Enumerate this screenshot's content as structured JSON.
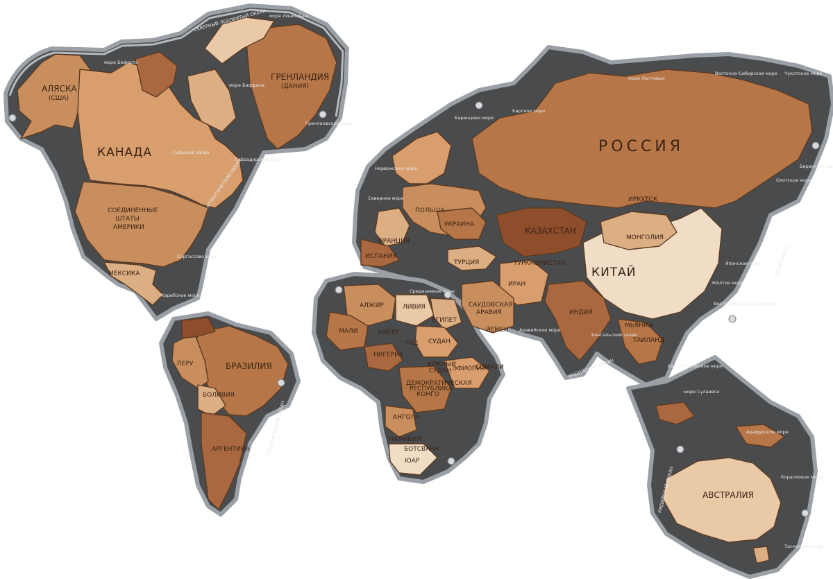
{
  "map": {
    "countries": {
      "alaska": "АЛЯСКА",
      "alaska_sub": "(США)",
      "canada": "КАНАДА",
      "usa_1": "СОЕДИНЕННЫЕ",
      "usa_2": "ШТАТЫ",
      "usa_3": "АМЕРИКИ",
      "mexico": "МЕКСИКА",
      "greenland": "ГРЕНЛАНДИЯ",
      "greenland_sub": "(ДАНИЯ)",
      "brazil": "БРАЗИЛИЯ",
      "peru": "ПЕРУ",
      "bolivia": "БОЛИВИЯ",
      "argentina": "АРГЕНТИНА",
      "russia": "РОССИЯ",
      "kazakhstan": "КАЗАХСТАН",
      "mongolia": "МОНГОЛИЯ",
      "china": "КИТАЙ",
      "india": "ИНДИЯ",
      "iran": "ИРАН",
      "turkey": "ТУРЦИЯ",
      "turkmenistan": "ТУРКМЕНИСТАН",
      "ukraine": "УКРАИНА",
      "poland": "ПОЛЬША",
      "france": "ФРАНЦИЯ",
      "spain": "ИСПАНИЯ",
      "saudi_1": "САУДОВСКАЯ",
      "saudi_2": "АРАВИЯ",
      "yemen": "ЙЕМЕН",
      "myanmar": "МЬЯНМА",
      "thailand": "ТАИЛАНД",
      "irkutsk": "ИРКУТСК",
      "algeria": "АЛЖИР",
      "libya": "ЛИВИЯ",
      "egypt": "ЕГИПЕТ",
      "mali": "МАЛИ",
      "niger": "НИГЕР",
      "chad": "ЧАД",
      "sudan": "СУДАН",
      "nigeria": "НИГЕРИЯ",
      "south_sudan_1": "ЮЖНЫЙ",
      "south_sudan_2": "СУДАН",
      "ethiopia": "ЭФИОПИЯ",
      "somalia": "СОМАЛИ",
      "drc_1": "ДЕМОКРАТИЧЕСКАЯ",
      "drc_2": "РЕСПУБЛИКА",
      "drc_3": "КОНГО",
      "angola": "АНГОЛА",
      "namibia": "НАМИБИЯ",
      "botswana": "БОТСВАНА",
      "sar": "ЮАР",
      "australia": "АВСТРАЛИЯ"
    },
    "seas": {
      "north_atlantic": "АТЛАНТИЧЕСКИЙ ОКЕАН",
      "south_atlantic": "АТЛАНТИЧЕСКИЙ ОКЕАН",
      "indian_ocean": "ИНДИЙСКИЙ ОКЕАН",
      "indian_ocean_2": "ИНДИЙСКИЙ ОКЕАН",
      "pacific": "ТИХИЙ ОКЕАН",
      "arctic": "СЕВЕРНЫЙ ЛЕДОВИТЫЙ ОКЕАН",
      "sargasso": "Саргассово море",
      "caribbean": "Карибское море",
      "hudson": "Гудзонов залив",
      "labrador": "Лабрадорское море",
      "baffin": "море Баффина",
      "lincoln": "море Линкольна",
      "beaufort": "море Бофорта",
      "greenland_sea": "Гренландское море",
      "norwegian": "Норвежское море",
      "barents": "Баренцево море",
      "kara": "Карское море",
      "laptev": "море Лаптевых",
      "east_siberian": "Восточно-Сибирское море",
      "chukchi": "Чукотское море",
      "bering": "Берингово море",
      "okhotsk": "Охотское море",
      "japan": "Японское море",
      "yellow": "Жёлтое море",
      "east_china": "Восточно-Китайское море",
      "south_china": "Южно-Китайское море",
      "bengal": "Бенгальский залив",
      "arabian": "Аравийское море",
      "mediterranean": "Средиземное море",
      "north_sea": "Северное море",
      "arafura": "Арафурское море",
      "coral": "Коралловое море",
      "tasman": "Тасманово море",
      "sulawesi": "море Сулавеси"
    }
  }
}
